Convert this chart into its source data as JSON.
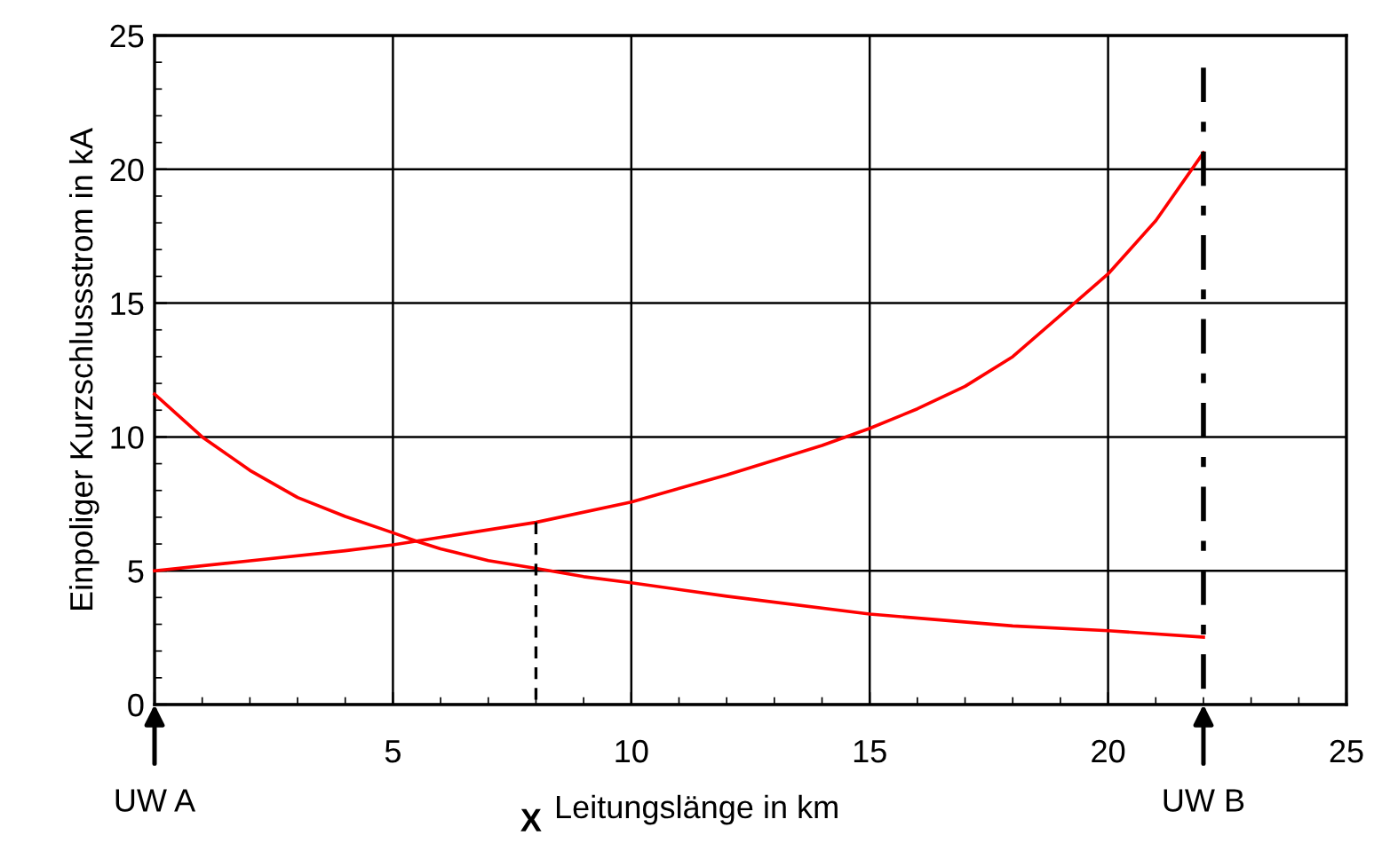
{
  "chart_data": {
    "type": "line",
    "xlabel": "Leitungslänge in km",
    "ylabel": "Einpoliger Kurzschlussstrom in kA",
    "xlim": [
      0,
      25
    ],
    "xticks": [
      {
        "value": 0,
        "label": null
      },
      5,
      10,
      15,
      20,
      25
    ],
    "ylim": [
      0,
      25
    ],
    "yticks": [
      0,
      5,
      10,
      15,
      20,
      25
    ],
    "grid": true,
    "legend": false,
    "marker": "none",
    "series": [
      {
        "color": "#ff0000",
        "x": [
          0,
          1,
          2,
          3,
          4,
          5,
          5.5,
          6,
          7,
          8,
          9,
          10,
          12,
          15,
          18,
          20,
          22
        ],
        "values": [
          11.6,
          10.0,
          8.75,
          7.74,
          7.03,
          6.42,
          6.1,
          5.82,
          5.38,
          5.09,
          4.78,
          4.55,
          4.05,
          3.38,
          2.94,
          2.76,
          2.52
        ]
      },
      {
        "color": "#ff0000",
        "x": [
          0,
          2,
          4,
          5,
          6,
          8,
          10,
          12,
          14,
          15,
          16,
          17,
          18,
          19,
          20,
          21,
          22
        ],
        "values": [
          5.0,
          5.37,
          5.75,
          5.97,
          6.25,
          6.81,
          7.57,
          8.58,
          9.68,
          10.32,
          11.05,
          11.89,
          13.0,
          14.54,
          16.09,
          18.08,
          20.62
        ]
      },
      {
        "color": "#000000",
        "x": [
          8,
          8
        ],
        "values": [
          6.81,
          0
        ],
        "line_style": "dashed"
      },
      {
        "color": "#000000",
        "x": [
          22,
          22
        ],
        "values": [
          23.8,
          0
        ],
        "line_style": "dashdot"
      }
    ],
    "annotations": [
      "UW A",
      "UW B",
      "X"
    ]
  }
}
